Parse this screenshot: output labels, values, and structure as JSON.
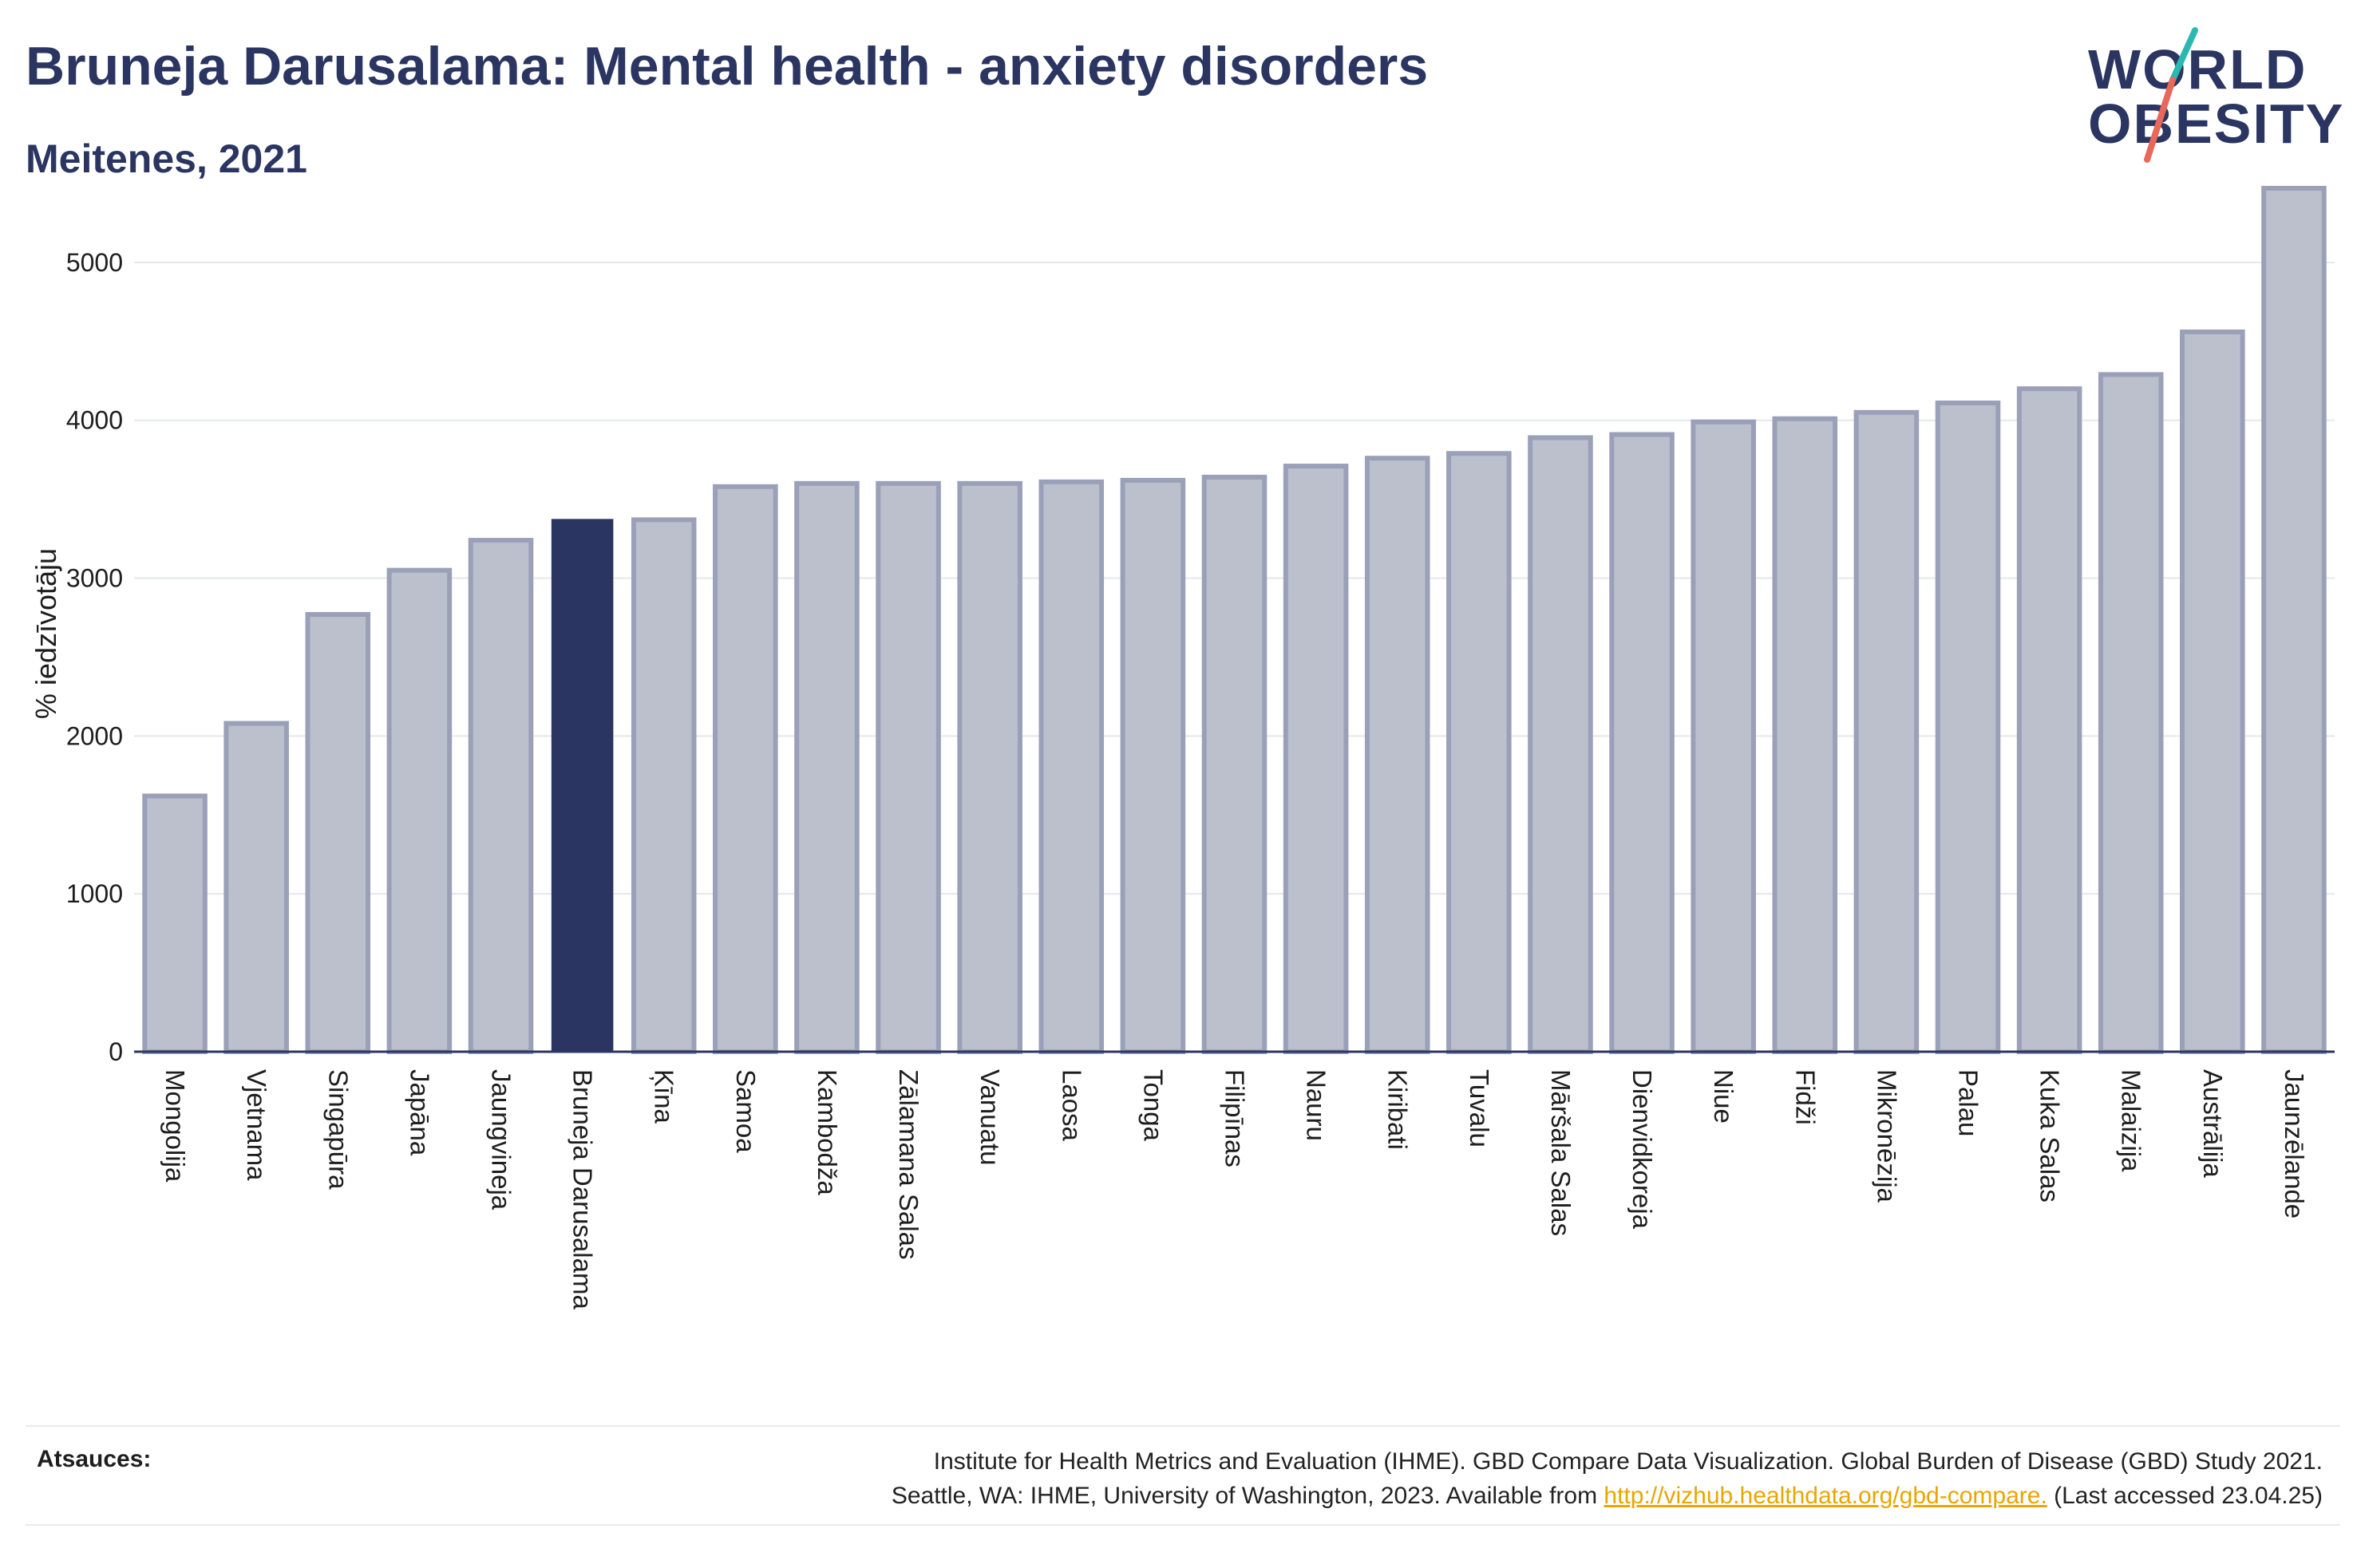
{
  "header": {
    "title": "Bruneja Darusalama: Mental health - anxiety disorders",
    "subtitle": "Meitenes, 2021"
  },
  "logo": {
    "line1": "WORLD",
    "line2": "OBESITY",
    "colors": {
      "text": "#2b3561",
      "slash_teal": "#2bb8b0",
      "slash_red": "#e8685a"
    }
  },
  "chart_data": {
    "type": "bar",
    "title": "Bruneja Darusalama: Mental health - anxiety disorders",
    "subtitle": "Meitenes, 2021",
    "ylabel": "% iedzīvotāju",
    "xlabel": "",
    "ylim": [
      0,
      5500
    ],
    "yticks": [
      0,
      1000,
      2000,
      3000,
      4000,
      5000
    ],
    "grid": true,
    "highlight": "Bruneja Darusalama",
    "colors": {
      "bar": "#bcc0cd",
      "bar_edge": "#9aa0b8",
      "highlight": "#2b3561",
      "grid": "#e6e7ec",
      "axis": "#2b3561"
    },
    "categories": [
      "Mongolija",
      "Vjetnama",
      "Singapūra",
      "Japāna",
      "Jaungvineja",
      "Bruneja Darusalama",
      "Ķīna",
      "Samoa",
      "Kambodža",
      "Zālamana Salas",
      "Vanuatu",
      "Laosa",
      "Tonga",
      "Filipīnas",
      "Nauru",
      "Kiribati",
      "Tuvalu",
      "Māršala Salas",
      "Dienvidkoreja",
      "Niue",
      "Fidži",
      "Mikronēzija",
      "Palau",
      "Kuka Salas",
      "Malaizija",
      "Austrālija",
      "Jaunzēlande"
    ],
    "values": [
      1620,
      2080,
      2770,
      3050,
      3240,
      3370,
      3370,
      3580,
      3600,
      3600,
      3600,
      3610,
      3620,
      3640,
      3710,
      3760,
      3790,
      3890,
      3910,
      3990,
      4010,
      4050,
      4110,
      4200,
      4290,
      4560,
      5470
    ]
  },
  "footer": {
    "source_label": "Atsauces:",
    "source_line1": "Institute for Health Metrics and Evaluation (IHME). GBD Compare Data Visualization. Global Burden of Disease (GBD) Study 2021.",
    "source_line2_pre": "Seattle, WA: IHME, University of Washington, 2023. Available from ",
    "source_link": "http://vizhub.healthdata.org/gbd-compare.",
    "source_line2_post": " (Last accessed 23.04.25)"
  }
}
